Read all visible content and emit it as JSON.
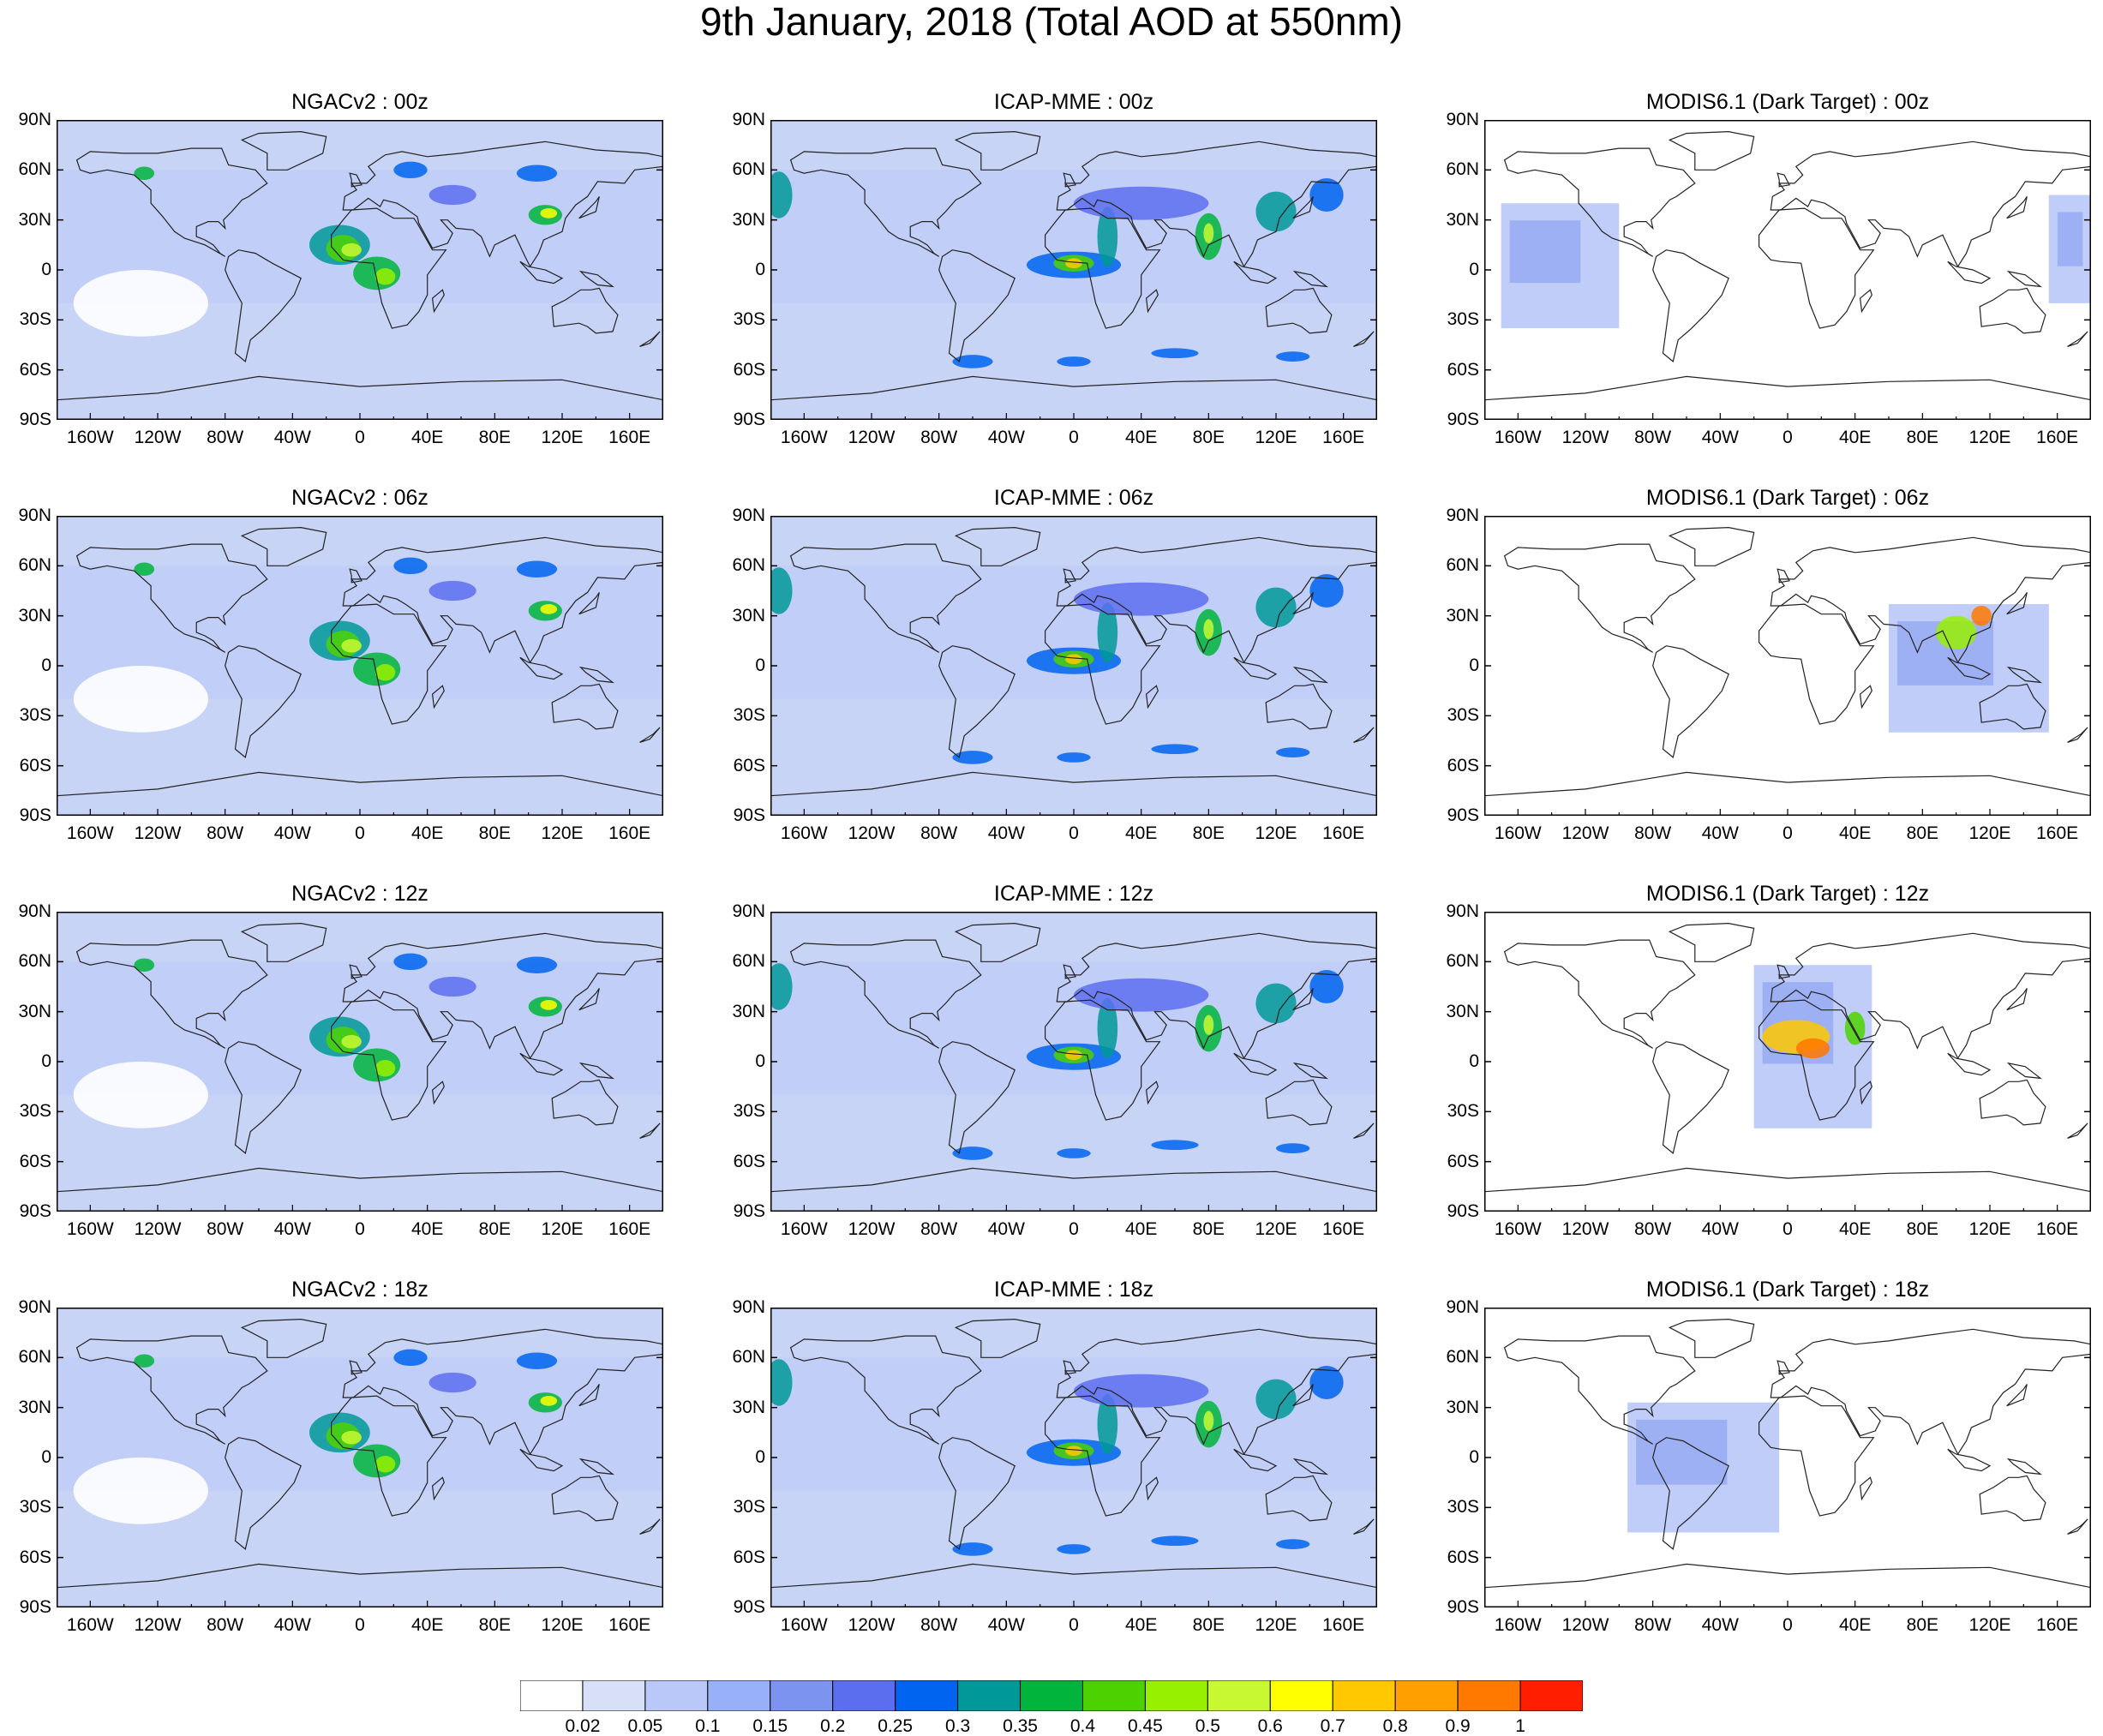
{
  "title": "9th January, 2018 (Total AOD at 550nm)",
  "panels": [
    {
      "title": "NGACv2 : 00z",
      "model": "NGACv2",
      "time": "00z"
    },
    {
      "title": "ICAP-MME : 00z",
      "model": "ICAP-MME",
      "time": "00z"
    },
    {
      "title": "MODIS6.1 (Dark Target) : 00z",
      "model": "MODIS6.1",
      "time": "00z"
    },
    {
      "title": "NGACv2 : 06z",
      "model": "NGACv2",
      "time": "06z"
    },
    {
      "title": "ICAP-MME : 06z",
      "model": "ICAP-MME",
      "time": "06z"
    },
    {
      "title": "MODIS6.1 (Dark Target) : 06z",
      "model": "MODIS6.1",
      "time": "06z"
    },
    {
      "title": "NGACv2 : 12z",
      "model": "NGACv2",
      "time": "12z"
    },
    {
      "title": "ICAP-MME : 12z",
      "model": "ICAP-MME",
      "time": "12z"
    },
    {
      "title": "MODIS6.1 (Dark Target) : 12z",
      "model": "MODIS6.1",
      "time": "12z"
    },
    {
      "title": "NGACv2 : 18z",
      "model": "NGACv2",
      "time": "18z"
    },
    {
      "title": "ICAP-MME : 18z",
      "model": "ICAP-MME",
      "time": "18z"
    },
    {
      "title": "MODIS6.1 (Dark Target) : 18z",
      "model": "MODIS6.1",
      "time": "18z"
    }
  ],
  "axes": {
    "lat_ticks": [
      "90N",
      "60N",
      "30N",
      "0",
      "30S",
      "60S",
      "90S"
    ],
    "lon_ticks": [
      "160W",
      "120W",
      "80W",
      "40W",
      "0",
      "40E",
      "80E",
      "120E",
      "160E"
    ]
  },
  "colorbar": {
    "labels": [
      "0.02",
      "0.05",
      "0.1",
      "0.15",
      "0.2",
      "0.25",
      "0.3",
      "0.35",
      "0.4",
      "0.45",
      "0.5",
      "0.6",
      "0.7",
      "0.8",
      "0.9",
      "1"
    ],
    "colors": [
      "#ffffff",
      "#d8e0f8",
      "#b9c8f8",
      "#98b0f8",
      "#7c94f0",
      "#5c6ef0",
      "#0064f0",
      "#009898",
      "#00b43c",
      "#4cd200",
      "#96f000",
      "#c8f832",
      "#ffff00",
      "#ffc800",
      "#ffa000",
      "#ff7800",
      "#ff1e00"
    ]
  },
  "styles": {
    "ocean": "#c8d4f6",
    "coast": "#222222"
  }
}
